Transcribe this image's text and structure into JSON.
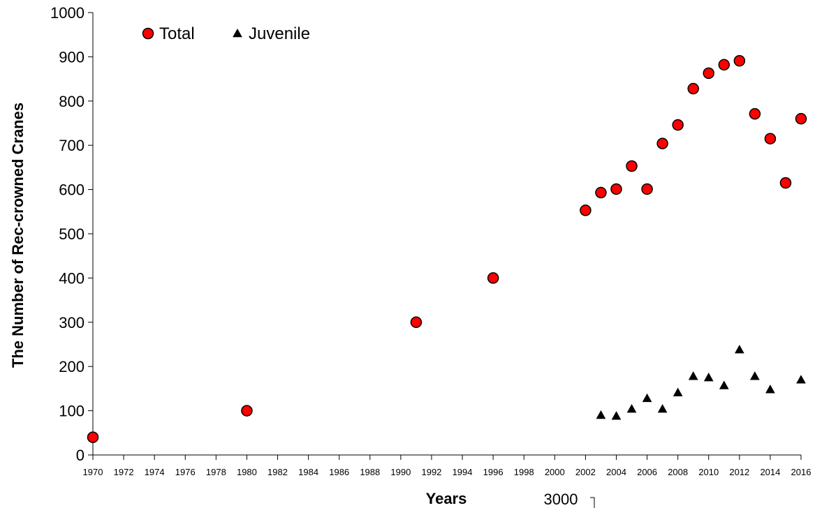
{
  "chart_data": {
    "type": "scatter",
    "title": "",
    "xlabel": "Years",
    "ylabel": "The Number of Rec-crowned Cranes",
    "xlim": [
      1970,
      2016
    ],
    "ylim": [
      0,
      1000
    ],
    "x_ticks": [
      "1970",
      "1972",
      "1974",
      "1976",
      "1978",
      "1980",
      "1982",
      "1984",
      "1986",
      "1988",
      "1990",
      "1992",
      "1994",
      "1996",
      "1998",
      "2000",
      "2002",
      "2004",
      "2006",
      "2008",
      "2010",
      "2012",
      "2014",
      "2016"
    ],
    "y_ticks": [
      "0",
      "100",
      "200",
      "300",
      "400",
      "500",
      "600",
      "700",
      "800",
      "900",
      "1000"
    ],
    "grid": false,
    "legend_position": "top-left",
    "series": [
      {
        "name": "Total",
        "marker": "circle",
        "color": "#ff0000",
        "points": [
          [
            1970,
            40
          ],
          [
            1980,
            100
          ],
          [
            1991,
            300
          ],
          [
            1996,
            400
          ],
          [
            2002,
            553
          ],
          [
            2003,
            593
          ],
          [
            2004,
            601
          ],
          [
            2005,
            653
          ],
          [
            2006,
            601
          ],
          [
            2007,
            704
          ],
          [
            2008,
            746
          ],
          [
            2009,
            828
          ],
          [
            2010,
            863
          ],
          [
            2011,
            882
          ],
          [
            2012,
            891
          ],
          [
            2013,
            771
          ],
          [
            2014,
            715
          ],
          [
            2015,
            615
          ],
          [
            2016,
            760
          ]
        ]
      },
      {
        "name": "Juvenile",
        "marker": "triangle",
        "color": "#000000",
        "points": [
          [
            2003,
            90
          ],
          [
            2004,
            88
          ],
          [
            2005,
            104
          ],
          [
            2006,
            128
          ],
          [
            2007,
            104
          ],
          [
            2008,
            141
          ],
          [
            2009,
            178
          ],
          [
            2010,
            175
          ],
          [
            2011,
            157
          ],
          [
            2012,
            238
          ],
          [
            2013,
            178
          ],
          [
            2014,
            148
          ],
          [
            2016,
            170
          ]
        ]
      }
    ],
    "stray_label": "3000"
  }
}
